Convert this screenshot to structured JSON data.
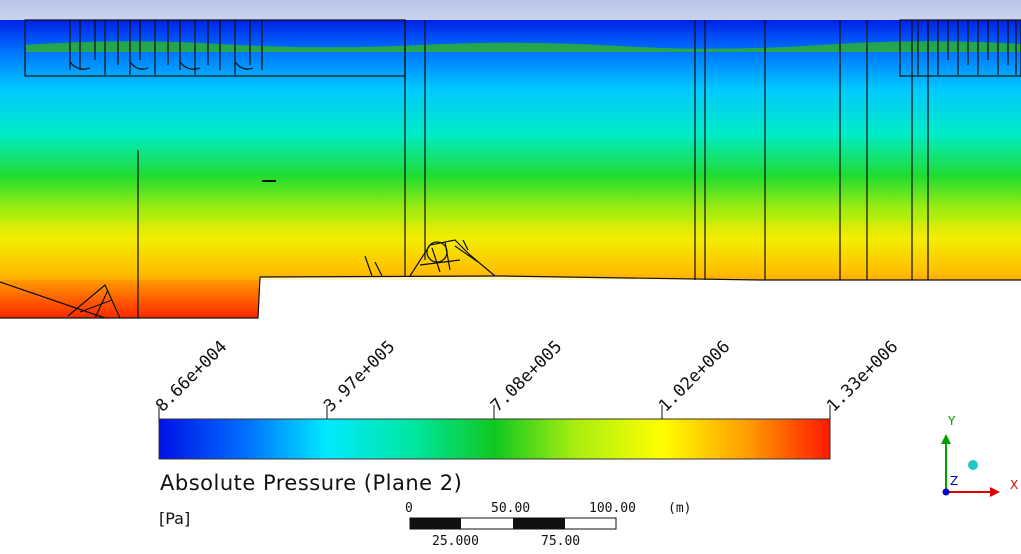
{
  "legend": {
    "title": "Absolute Pressure (Plane 2)",
    "units": "[Pa]",
    "ticks": [
      "8.66e+004",
      "3.97e+005",
      "7.08e+005",
      "1.02e+006",
      "1.33e+006"
    ],
    "colors": [
      "#0000e6",
      "#00e5ff",
      "#00cc22",
      "#ffff00",
      "#ff1a00"
    ]
  },
  "scale_bar": {
    "top_labels": [
      "0",
      "50.00",
      "100.00"
    ],
    "bottom_labels": [
      "25.000",
      "75.00"
    ],
    "unit": "(m)"
  },
  "axes": {
    "x": "X",
    "y": "Y",
    "z": "Z",
    "x_color": "#e00000",
    "y_color": "#00a000",
    "z_color": "#0000cc"
  }
}
